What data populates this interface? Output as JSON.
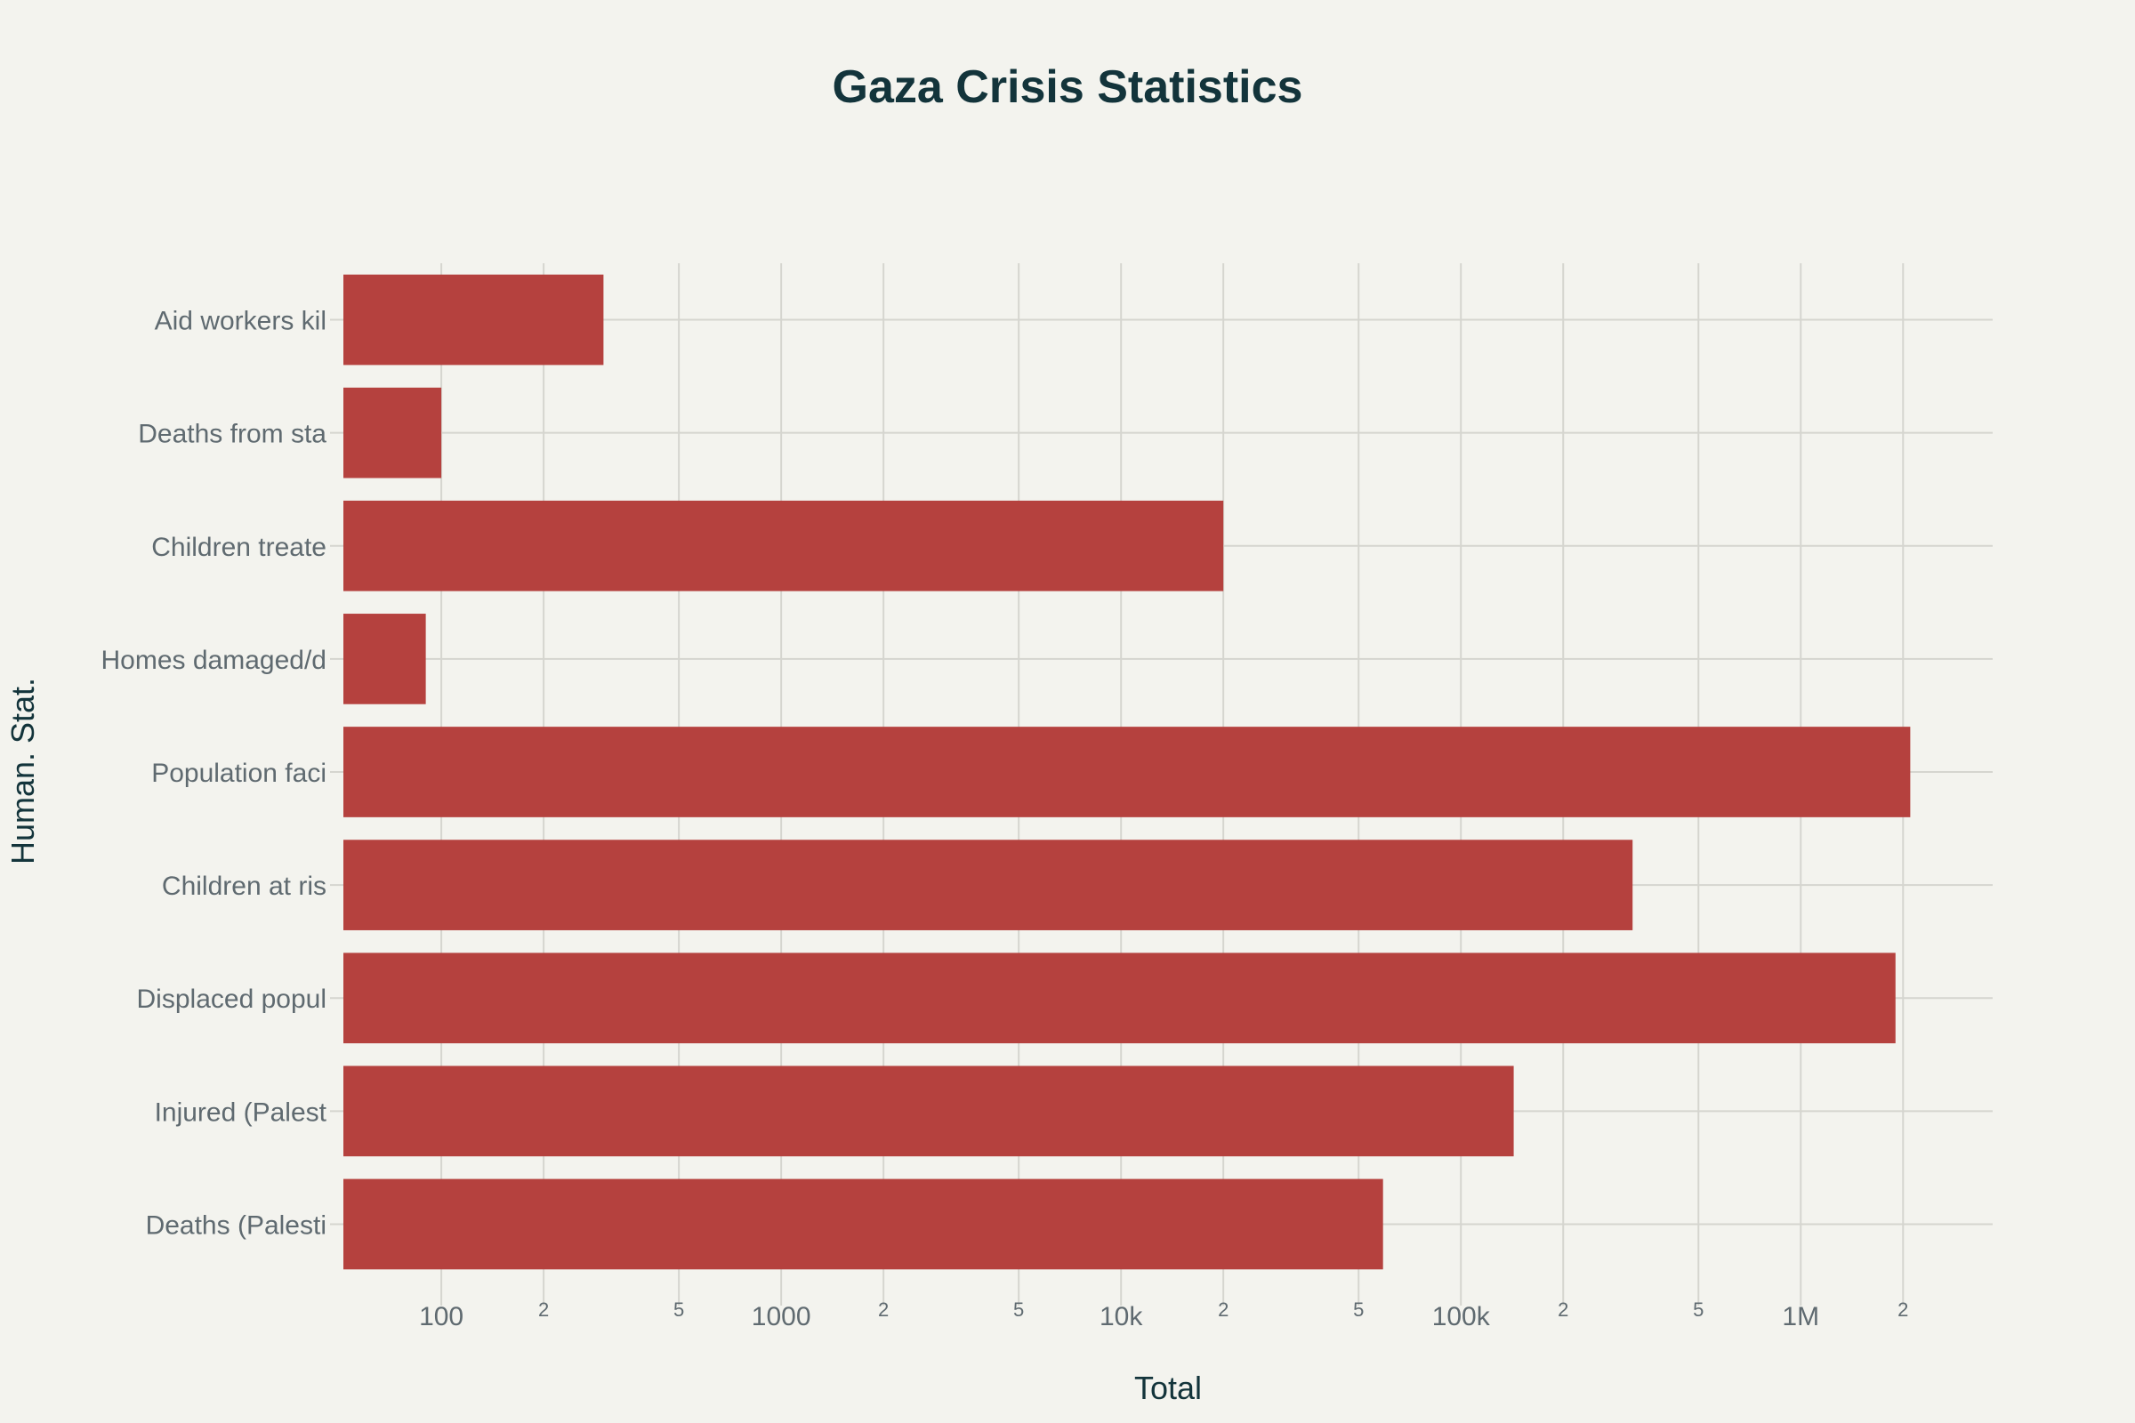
{
  "chart_data": {
    "type": "bar",
    "orientation": "horizontal",
    "title": "Gaza Crisis Statistics",
    "xlabel": "Total",
    "ylabel": "Human. Stat.",
    "x_scale": "log",
    "xlim": [
      51.5,
      3670000
    ],
    "grid": true,
    "legend": "none",
    "bar_color": "#b5413e",
    "categories": [
      "Deaths (Palesti",
      "Injured (Palest",
      "Displaced popul",
      "Children at ris",
      "Population faci",
      "Homes damaged/d",
      "Children treate",
      "Deaths from sta",
      "Aid workers kil"
    ],
    "values": [
      59000,
      143000,
      1900000,
      320000,
      2100000,
      90,
      20000,
      100,
      300
    ],
    "x_ticks": [
      {
        "value": 100,
        "label": "100",
        "major": true
      },
      {
        "value": 200,
        "label": "2",
        "major": false
      },
      {
        "value": 500,
        "label": "5",
        "major": false
      },
      {
        "value": 1000,
        "label": "1000",
        "major": true
      },
      {
        "value": 2000,
        "label": "2",
        "major": false
      },
      {
        "value": 5000,
        "label": "5",
        "major": false
      },
      {
        "value": 10000,
        "label": "10k",
        "major": true
      },
      {
        "value": 20000,
        "label": "2",
        "major": false
      },
      {
        "value": 50000,
        "label": "5",
        "major": false
      },
      {
        "value": 100000,
        "label": "100k",
        "major": true
      },
      {
        "value": 200000,
        "label": "2",
        "major": false
      },
      {
        "value": 500000,
        "label": "5",
        "major": false
      },
      {
        "value": 1000000,
        "label": "1M",
        "major": true
      },
      {
        "value": 2000000,
        "label": "2",
        "major": false
      }
    ]
  }
}
